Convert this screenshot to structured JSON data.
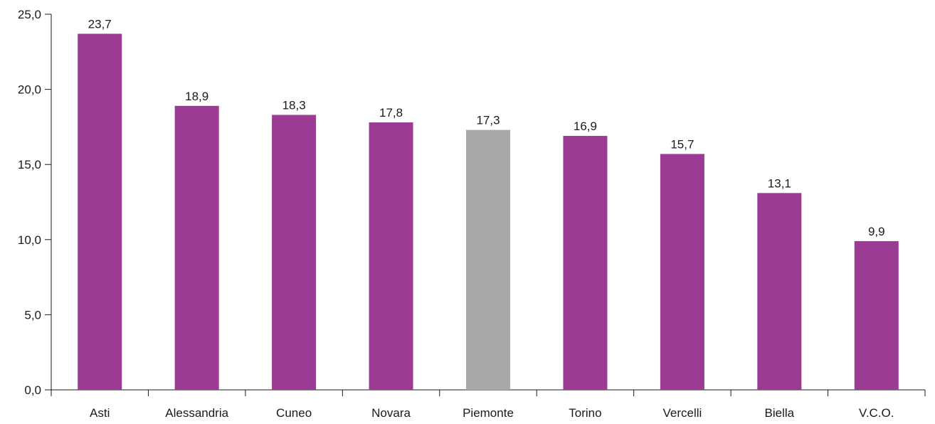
{
  "chart_data": {
    "type": "bar",
    "title": "",
    "xlabel": "",
    "ylabel": "",
    "ylim": [
      0,
      25
    ],
    "yticks": [
      0,
      5,
      10,
      15,
      20,
      25
    ],
    "ytick_labels": [
      "0,0",
      "5,0",
      "10,0",
      "15,0",
      "20,0",
      "25,0"
    ],
    "grid": false,
    "categories": [
      "Asti",
      "Alessandria",
      "Cuneo",
      "Novara",
      "Piemonte",
      "Torino",
      "Vercelli",
      "Biella",
      "V.C.O."
    ],
    "values": [
      23.7,
      18.9,
      18.3,
      17.8,
      17.3,
      16.9,
      15.7,
      13.1,
      9.9
    ],
    "value_labels": [
      "23,7",
      "18,9",
      "18,3",
      "17,8",
      "17,3",
      "16,9",
      "15,7",
      "13,1",
      "9,9"
    ],
    "bar_colors": [
      "#9b3b93",
      "#9b3b93",
      "#9b3b93",
      "#9b3b93",
      "#a7a8aa",
      "#9b3b93",
      "#9b3b93",
      "#9b3b93",
      "#9b3b93"
    ]
  }
}
